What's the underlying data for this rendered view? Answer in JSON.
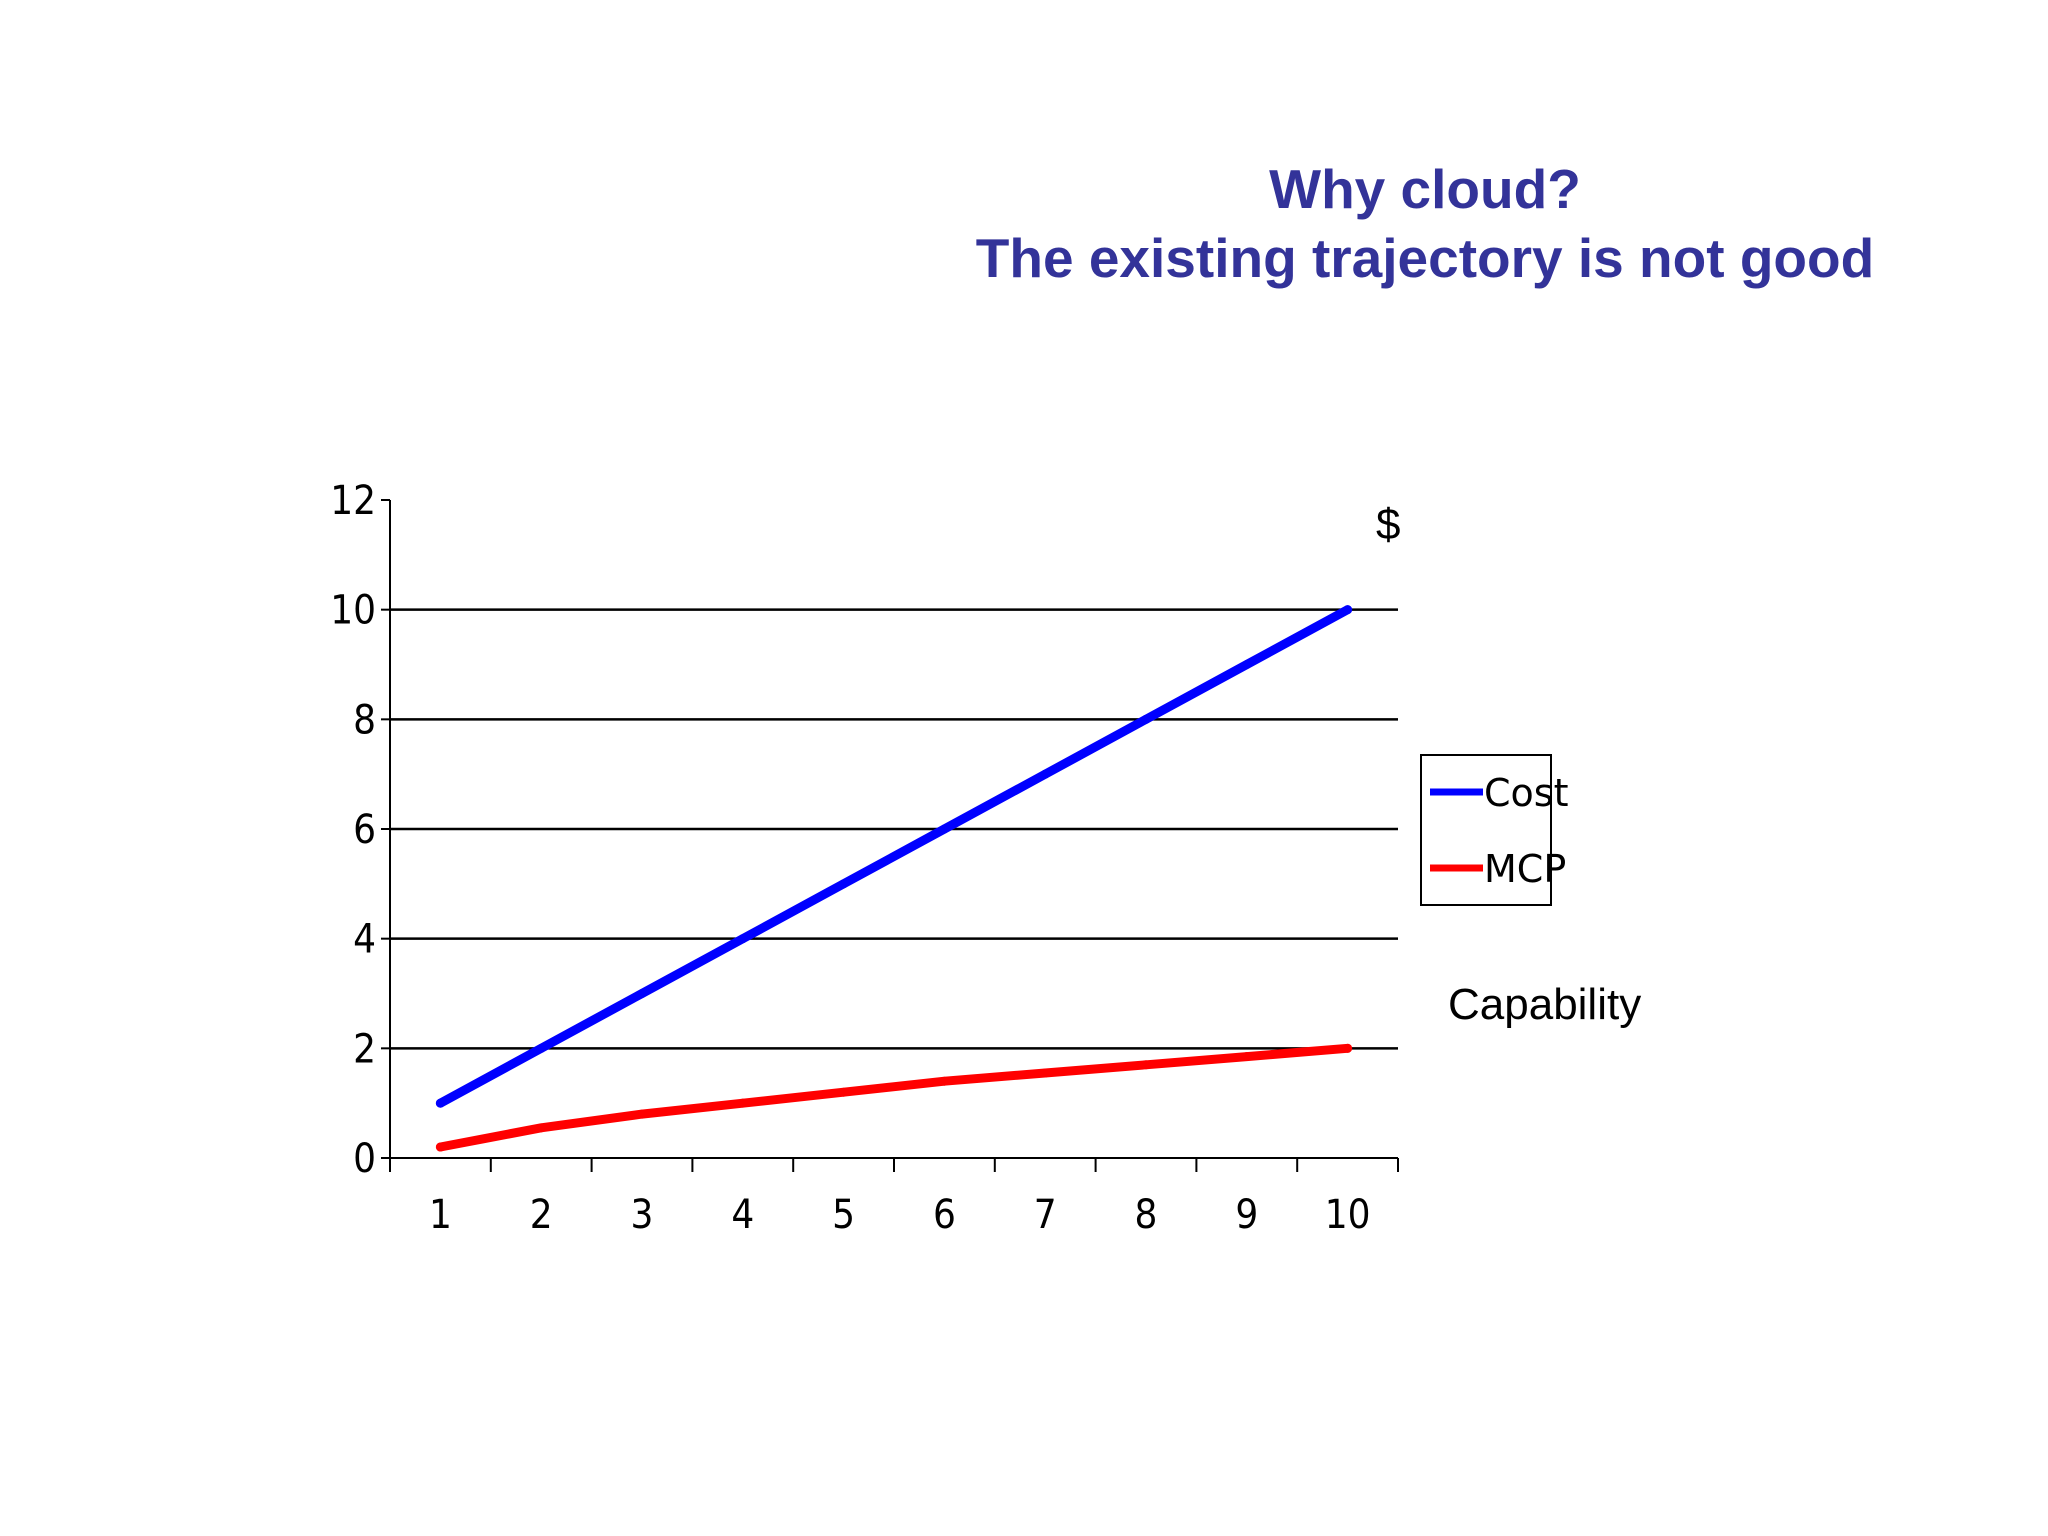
{
  "slide": {
    "title_line1": "Why cloud?",
    "title_line2": "The existing trajectory is not good",
    "title_color": "#333399"
  },
  "annotations": {
    "y_unit": "$",
    "x_label": "Capability"
  },
  "chart_data": {
    "type": "line",
    "x": [
      1,
      2,
      3,
      4,
      5,
      6,
      7,
      8,
      9,
      10
    ],
    "series": [
      {
        "name": "Cost",
        "color": "#0000ff",
        "values": [
          1,
          2,
          3,
          4,
          5,
          6,
          7,
          8,
          9,
          10
        ]
      },
      {
        "name": "MCP",
        "color": "#ff0000",
        "values": [
          0.2,
          0.55,
          0.8,
          1.0,
          1.2,
          1.4,
          1.55,
          1.7,
          1.85,
          2.0
        ]
      }
    ],
    "ylim": [
      0,
      12
    ],
    "yticks": [
      0,
      2,
      4,
      6,
      8,
      10,
      12
    ],
    "xticks": [
      "1",
      "2",
      "3",
      "4",
      "5",
      "6",
      "7",
      "8",
      "9",
      "10"
    ],
    "grid": "horizontal",
    "legend_position": "right"
  }
}
